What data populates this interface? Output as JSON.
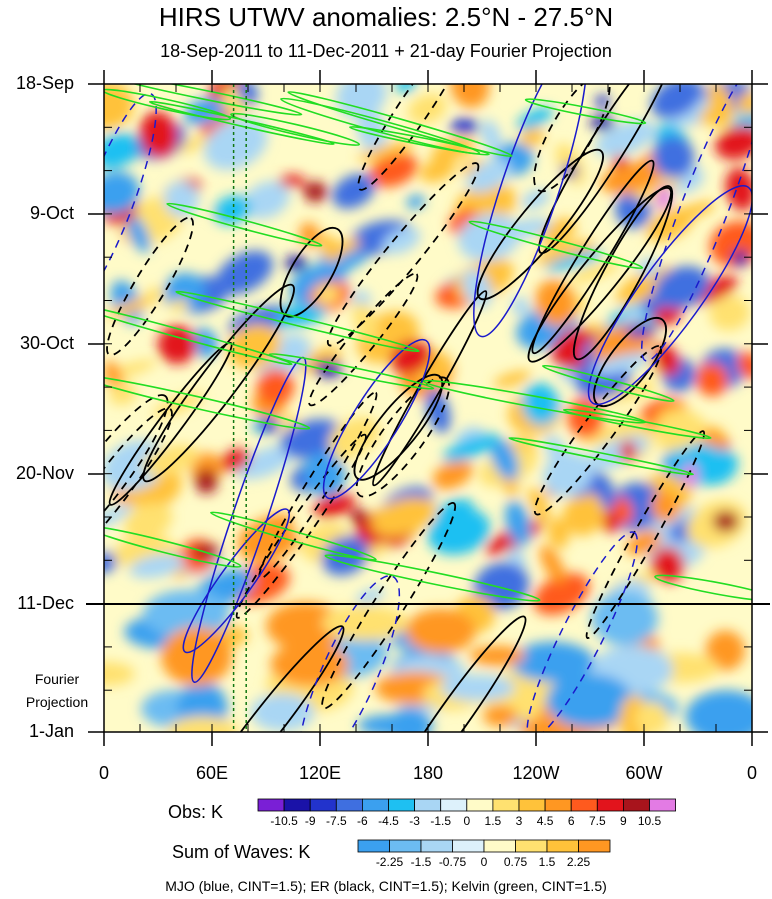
{
  "chart_data": {
    "type": "heatmap",
    "title": "HIRS UTWV anomalies: 2.5°N - 27.5°N",
    "subtitle": "18-Sep-2011 to 11-Dec-2011 + 21-day Fourier Projection",
    "x_axis": {
      "ticks": [
        "0",
        "60E",
        "120E",
        "180",
        "120W",
        "60W",
        "0"
      ],
      "range_deg_east": [
        0,
        360
      ]
    },
    "y_axis": {
      "ticks": [
        "18-Sep",
        "9-Oct",
        "30-Oct",
        "20-Nov",
        "11-Dec",
        "1-Jan"
      ],
      "projection_label_line1": "Fourier",
      "projection_label_line2": "Projection",
      "projection_start": "11-Dec",
      "reversed": true
    },
    "obs_colorbar": {
      "label": "Obs: K",
      "levels": [
        "-10.5",
        "-9",
        "-7.5",
        "-6",
        "-4.5",
        "-3",
        "-1.5",
        "0",
        "1.5",
        "3",
        "4.5",
        "6",
        "7.5",
        "9",
        "10.5"
      ],
      "colors": [
        "#7a1fd6",
        "#1a12a8",
        "#2233cc",
        "#3f6fe0",
        "#3ba0ef",
        "#1ec0f2",
        "#a9d6f4",
        "#ddf1fb",
        "#fffbc8",
        "#ffe170",
        "#ffc23a",
        "#ff9722",
        "#ff5a1e",
        "#e2141c",
        "#a8141c",
        "#e37be4"
      ]
    },
    "waves_colorbar": {
      "label": "Sum of Waves: K",
      "levels": [
        "-2.25",
        "-1.5",
        "-0.75",
        "0",
        "0.75",
        "1.5",
        "2.25"
      ],
      "colors": [
        "#3ba0ef",
        "#6cbcf2",
        "#a9d6f4",
        "#ddf1fb",
        "#fffbc8",
        "#ffe170",
        "#ffc23a",
        "#ff9722"
      ]
    },
    "contours": [
      {
        "name": "MJO",
        "color": "#1a1acc"
      },
      {
        "name": "ER",
        "color": "#000000"
      },
      {
        "name": "Kelvin",
        "color": "#22dd22"
      }
    ],
    "footer": "MJO (blue, CINT=1.5); ER (black, CINT=1.5); Kelvin (green, CINT=1.5)"
  }
}
